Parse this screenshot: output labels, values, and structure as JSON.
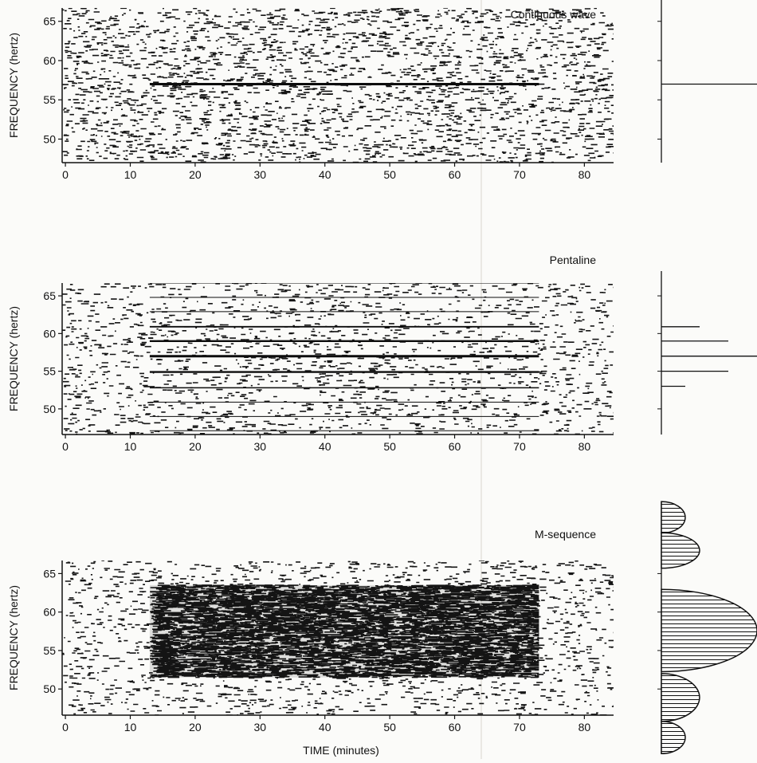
{
  "chart_data": [
    {
      "type": "spectrogram",
      "title": "Continuous wave",
      "y_label": "FREQUENCY (hertz)",
      "xlim": [
        -0.5,
        84.5
      ],
      "xticks": [
        0,
        10,
        20,
        30,
        40,
        50,
        60,
        70,
        80
      ],
      "ylim": [
        47,
        66.7
      ],
      "yticks": [
        50,
        55,
        60,
        65
      ],
      "tones": {
        "frequencies": [
          57
        ],
        "start": 13,
        "end": 73
      },
      "spectrum": {
        "frequencies": [
          57
        ],
        "amplitudes": [
          1
        ]
      }
    },
    {
      "type": "spectrogram",
      "title": "Pentaline",
      "y_label": "FREQUENCY (hertz)",
      "xlim": [
        -0.5,
        84.5
      ],
      "xticks": [
        0,
        10,
        20,
        30,
        40,
        50,
        60,
        70,
        80
      ],
      "ylim": [
        46.6,
        66.7
      ],
      "yticks": [
        50,
        55,
        60,
        65
      ],
      "tones": {
        "frequencies": [
          47.1,
          49.0,
          50.9,
          52.8,
          54.9,
          57.0,
          59.0,
          60.9,
          62.9,
          64.8,
          66.7
        ],
        "start": 13,
        "end": 73
      },
      "spectrum": {
        "frequencies": [
          60.9,
          59.0,
          57.0,
          55.0,
          53.0
        ],
        "amplitudes": [
          0.4,
          0.7,
          1,
          0.7,
          0.25
        ]
      }
    },
    {
      "type": "spectrogram",
      "title": "M-sequence",
      "y_label": "FREQUENCY (hertz)",
      "x_label": "TIME (minutes)",
      "xlim": [
        -0.5,
        84.5
      ],
      "xticks": [
        0,
        10,
        20,
        30,
        40,
        50,
        60,
        70,
        80
      ],
      "ylim": [
        46.6,
        66.7
      ],
      "yticks": [
        50,
        55,
        60,
        65
      ],
      "band": {
        "low": 51.5,
        "high": 63.5,
        "start": 13,
        "end": 73
      },
      "spectrum": {
        "centers": [
          72.3,
          68.0,
          57.6,
          48.9,
          43.7
        ],
        "halfwidths": [
          2.05,
          2.3,
          5.35,
          3.1,
          2.1
        ],
        "amplitudes": [
          0.25,
          0.4,
          1,
          0.4,
          0.25
        ]
      }
    }
  ]
}
